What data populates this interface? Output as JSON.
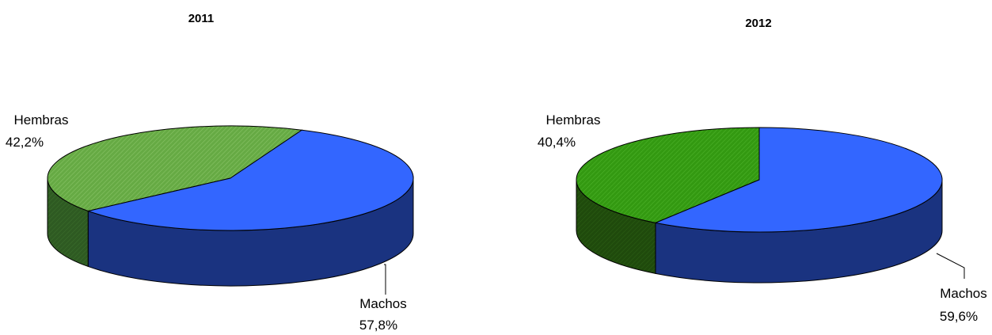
{
  "chart_data": [
    {
      "type": "pie",
      "style": "3d",
      "title": "2011",
      "slices": [
        {
          "label": "Machos",
          "value": 57.8,
          "display": "57,8%",
          "color": "#3366FF",
          "side_color": "#1A3380"
        },
        {
          "label": "Hembras",
          "value": 42.2,
          "display": "42,2%",
          "color": "#66AA44",
          "side_color": "#2E5A22",
          "hatched": true
        }
      ]
    },
    {
      "type": "pie",
      "style": "3d",
      "title": "2012",
      "slices": [
        {
          "label": "Machos",
          "value": 59.6,
          "display": "59,6%",
          "color": "#3366FF",
          "side_color": "#1A3380"
        },
        {
          "label": "Hembras",
          "value": 40.4,
          "display": "40,4%",
          "color": "#339911",
          "side_color": "#1F4A0C",
          "hatched": true
        }
      ]
    }
  ]
}
